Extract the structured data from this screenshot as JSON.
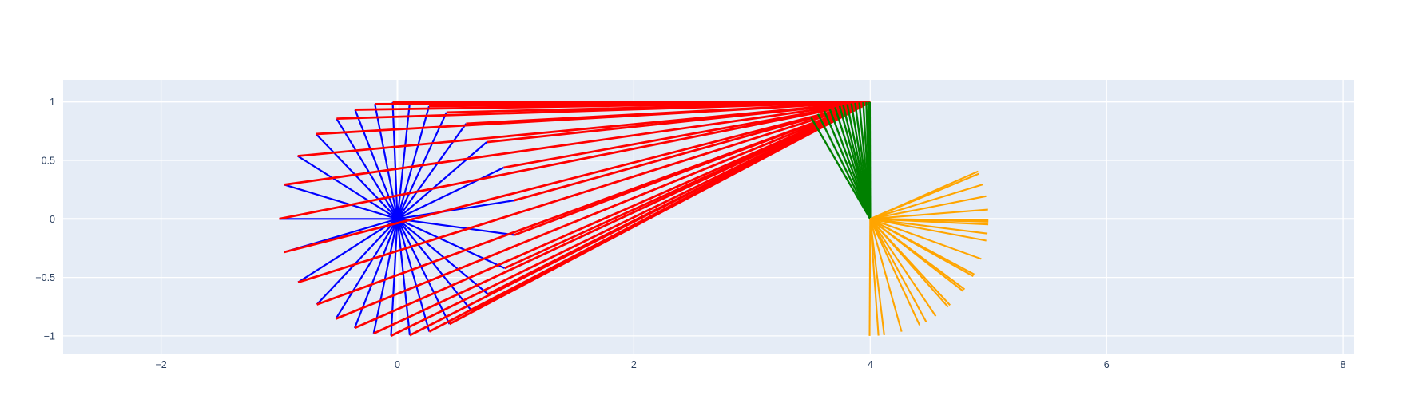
{
  "figure": {
    "background": "#FFFFFF",
    "plot_background": "#E5ECF6",
    "grid_color": "#FFFFFF",
    "tick_color": "#2a3f5f",
    "tick_font_size": 12.5
  },
  "chart_data": {
    "type": "line",
    "title": "",
    "xlabel": "",
    "ylabel": "",
    "grid": true,
    "legend": false,
    "x_range": [
      -2.83,
      8.09
    ],
    "y_range": [
      -1.16,
      1.19
    ],
    "x_ticks": {
      "values": [
        -2,
        0,
        2,
        4,
        6,
        8
      ],
      "labels": [
        "−2",
        "0",
        "2",
        "4",
        "6",
        "8"
      ]
    },
    "y_ticks": {
      "values": [
        -1,
        -0.5,
        0,
        0.5,
        1
      ],
      "labels": [
        "−1",
        "−0.5",
        "0",
        "0.5",
        "1"
      ]
    },
    "series": [
      {
        "name": "origin-fan-blue",
        "type": "rays",
        "color": "#0000FF",
        "width": 2.2,
        "center": [
          0,
          0
        ],
        "radius": 1,
        "angles_deg": [
          180,
          163,
          147.5,
          133.5,
          121,
          111,
          101,
          92.3,
          84,
          74.5,
          65.5,
          54.5,
          41,
          26,
          9.1,
          -7.9,
          -24.9,
          -40,
          -51.4,
          -63.9,
          -74.4,
          -84,
          -93.1,
          -101.6,
          -111.2,
          -121.4,
          -133,
          -147.2,
          -163.5
        ]
      },
      {
        "name": "circle-to-pivot-red",
        "type": "segments_from_circle",
        "color": "#FF0000",
        "width": 2.8,
        "circle_center": [
          0,
          0
        ],
        "radius": 1,
        "target": [
          4,
          1
        ],
        "angles_deg": [
          180,
          163,
          147.5,
          133.5,
          121,
          111,
          101,
          92.3,
          84,
          74.5,
          65.5,
          54.5,
          41,
          26,
          9.1,
          -7.9,
          -24.9,
          -40,
          -51.4,
          -63.9,
          -74.4,
          -84,
          -93.1,
          -101.6,
          -111.2,
          -121.4,
          -133,
          -147.2,
          -163.5
        ]
      },
      {
        "name": "upper-fan-green",
        "type": "rays",
        "color": "#008000",
        "width": 2.4,
        "center": [
          4,
          0
        ],
        "radius": 1,
        "angles_deg": [
          120,
          116.2,
          112.8,
          110,
          107.3,
          105,
          103.2,
          101.2,
          99.2,
          97.3,
          95.3,
          93.4,
          91.9,
          90.8,
          90.2
        ]
      },
      {
        "name": "lower-fan-orange",
        "type": "rays",
        "color": "#FFA500",
        "width": 2.1,
        "center": [
          4,
          0
        ],
        "radius": 1,
        "angles_deg": [
          24,
          22.8,
          17.2,
          11.2,
          4.6,
          -0.7,
          -1.4,
          -2.7,
          -7.2,
          -10.7,
          -20,
          -28.3,
          -29.3,
          -37,
          -38.1,
          -47.5,
          -48.8,
          -56.3,
          -61.7,
          -65.3,
          -74.6,
          -83.2,
          -86,
          -90.3
        ]
      }
    ]
  }
}
